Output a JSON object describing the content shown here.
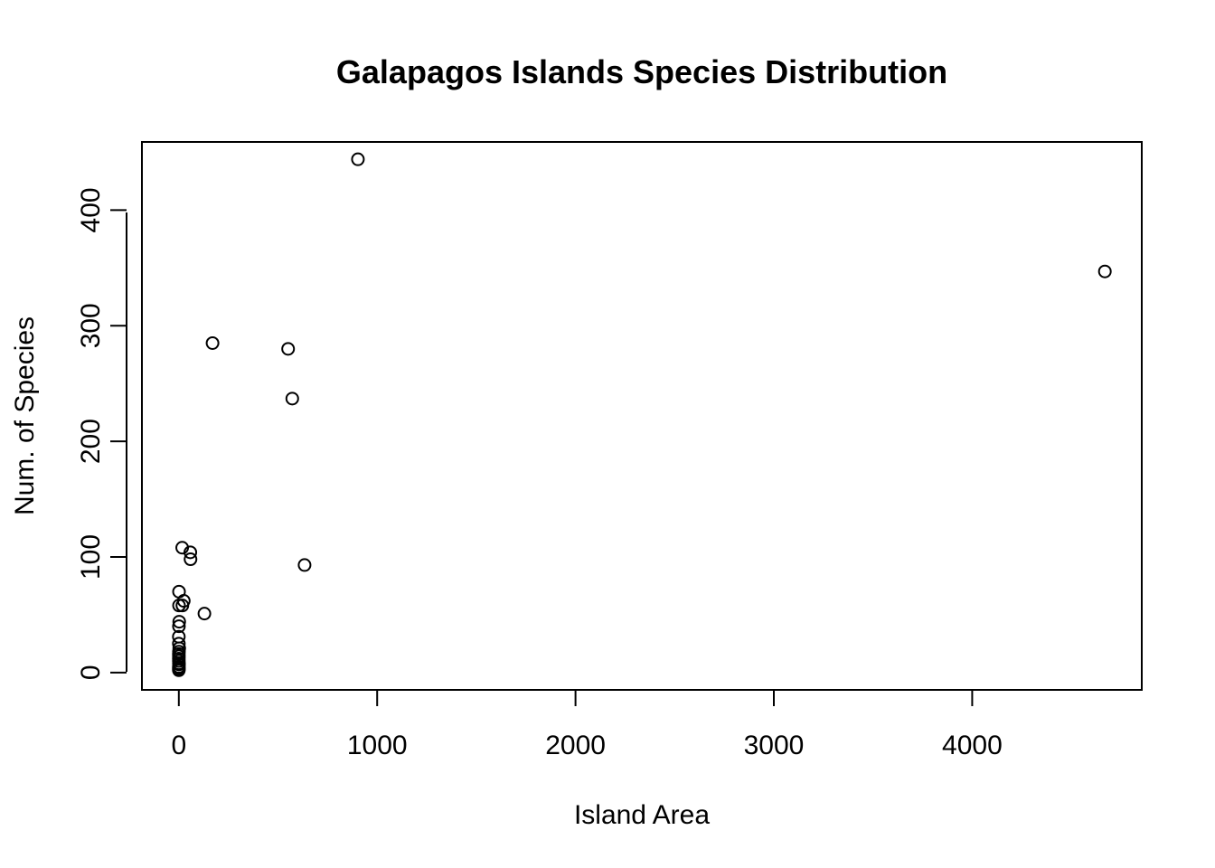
{
  "chart_data": {
    "type": "scatter",
    "title": "Galapagos Islands Species Distribution",
    "xlabel": "Island Area",
    "ylabel": "Num. of Species",
    "xlim": [
      -186,
      4855
    ],
    "ylim": [
      -15,
      459
    ],
    "xticks": [
      0,
      1000,
      2000,
      3000,
      4000
    ],
    "xtick_labels": [
      "0",
      "1000",
      "2000",
      "3000",
      "4000"
    ],
    "yticks": [
      0,
      100,
      200,
      300,
      400
    ],
    "ytick_labels": [
      "0",
      "100",
      "200",
      "300",
      "400"
    ],
    "grid": false,
    "legend": null,
    "point_style": "open-circle",
    "series": [
      {
        "x": [
          903,
          4669,
          170,
          551,
          572,
          634,
          17,
          58,
          59,
          129,
          1,
          25,
          1,
          18,
          2,
          0.5,
          0.1,
          0.2,
          2,
          0.6,
          0.1,
          0.3,
          0.1,
          0.2,
          0.5,
          0.7,
          0.2,
          0.1,
          0.2,
          0.1
        ],
        "y": [
          444,
          347,
          285,
          280,
          237,
          93,
          108,
          104,
          98,
          51,
          70,
          62,
          58,
          58,
          44,
          40,
          31,
          25,
          21,
          18,
          16,
          14,
          12,
          10,
          8,
          7,
          5,
          4,
          3,
          2
        ]
      }
    ]
  }
}
